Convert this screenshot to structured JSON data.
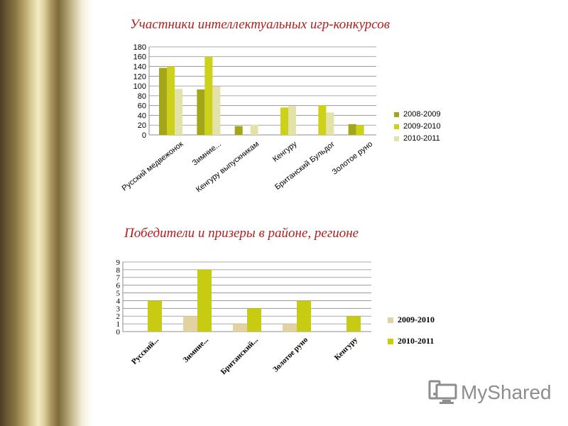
{
  "colors": {
    "heading": "#b0201e",
    "s2008": "#a3a61a",
    "s2009": "#cdd11a",
    "s2010": "#e3e2a8",
    "c2_2009": "#e2d2a0",
    "c2_2010": "#c7cc13"
  },
  "headings": {
    "participants": "Участники  интеллектуальных игр-конкурсов",
    "winners": "Победители и призеры в районе, регионе"
  },
  "logo": {
    "text": "MyShared",
    "icon": "computer-icon"
  },
  "chart_data": [
    {
      "type": "bar",
      "categories": [
        "Русский медвежонок",
        "Зимние...",
        "Кенгуру выпускникам",
        "Кенгуру",
        "Британский Бульдог",
        "Золотое руно"
      ],
      "series": [
        {
          "name": "2008-2009",
          "values": [
            137,
            93,
            18,
            0,
            0,
            22
          ]
        },
        {
          "name": "2009-2010",
          "values": [
            140,
            160,
            0,
            56,
            61,
            20
          ]
        },
        {
          "name": "2010-2011",
          "values": [
            94,
            99,
            21,
            59,
            46,
            0
          ]
        }
      ],
      "yticks": [
        "0",
        "20",
        "40",
        "60",
        "80",
        "100",
        "120",
        "140",
        "160",
        "180"
      ],
      "ylim": [
        0,
        180
      ],
      "grid": true,
      "legend": "right"
    },
    {
      "type": "bar",
      "categories": [
        "Русский...",
        "Зимние...",
        "Британский...",
        "Золотое руно",
        "Кенгуру"
      ],
      "series": [
        {
          "name": "2009-2010",
          "values": [
            0,
            2,
            1,
            1,
            0
          ]
        },
        {
          "name": "2010-2011",
          "values": [
            4,
            8,
            3,
            4,
            2
          ]
        }
      ],
      "yticks": [
        "0",
        "1",
        "2",
        "3",
        "4",
        "5",
        "6",
        "7",
        "8",
        "9"
      ],
      "ylim": [
        0,
        9
      ],
      "grid": true,
      "legend": "right"
    }
  ]
}
